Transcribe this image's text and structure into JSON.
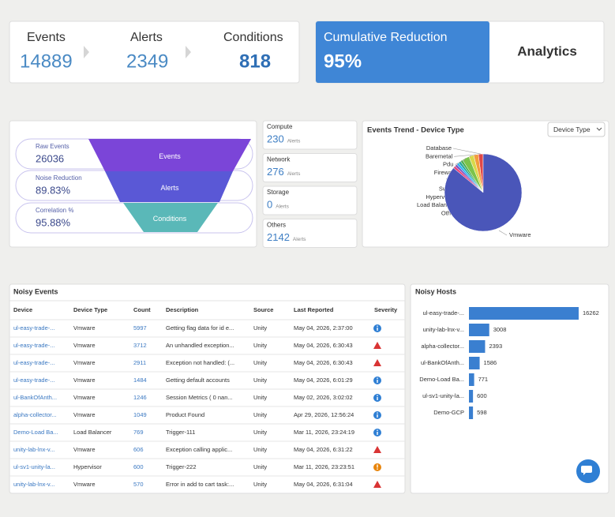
{
  "summary": {
    "items": [
      {
        "label": "Events",
        "value": "14889"
      },
      {
        "label": "Alerts",
        "value": "2349"
      },
      {
        "label": "Conditions",
        "value": "818"
      }
    ]
  },
  "reduction": {
    "label": "Cumulative Reduction",
    "value": "95%"
  },
  "analytics": "Analytics",
  "funnel": {
    "metrics": [
      {
        "label": "Raw Events",
        "value": "26036"
      },
      {
        "label": "Noise Reduction",
        "value": "89.83%"
      },
      {
        "label": "Correlation %",
        "value": "95.88%"
      }
    ],
    "stages": [
      "Events",
      "Alerts",
      "Conditions"
    ]
  },
  "stat_cards": [
    {
      "label": "Compute",
      "value": "230",
      "unit": "Alerts"
    },
    {
      "label": "Network",
      "value": "276",
      "unit": "Alerts"
    },
    {
      "label": "Storage",
      "value": "0",
      "unit": "Alerts"
    },
    {
      "label": "Others",
      "value": "2142",
      "unit": "Alerts"
    }
  ],
  "device_trend": {
    "type": "pie",
    "title": "Events Trend - Device Type",
    "select": "Device Type",
    "categories": [
      "Database",
      "Baremetal",
      "Pdu",
      "Firewall",
      "Vm",
      "Switch",
      "Hypervisor",
      "Load Balancer",
      "Other",
      "Vmware"
    ],
    "values": [
      2,
      2,
      2,
      3,
      1,
      1,
      1,
      1,
      1,
      86
    ],
    "colors": [
      "#e04848",
      "#f39c3c",
      "#d8d84a",
      "#7cc34a",
      "#4caf50",
      "#26a69a",
      "#29b6f6",
      "#7e57c2",
      "#ec407a",
      "#4a56b9"
    ]
  },
  "noisy_events": {
    "title": "Noisy Events",
    "columns": [
      "Device",
      "Device Type",
      "Count",
      "Description",
      "Source",
      "Last Reported",
      "Severity"
    ],
    "rows": [
      [
        "ul-easy-trade-...",
        "Vmware",
        5997,
        "Getting flag data for id e...",
        "Unity",
        "May 04, 2026, 2:37:00"
      ],
      [
        "ul-easy-trade-...",
        "Vmware",
        3712,
        "An unhandled exception...",
        "Unity",
        "May 04, 2026, 6:30:43"
      ],
      [
        "ul-easy-trade-...",
        "Vmware",
        2911,
        "Exception not handled: (...",
        "Unity",
        "May 04, 2026, 6:30:43"
      ],
      [
        "ul-easy-trade-...",
        "Vmware",
        1484,
        "Getting default accounts",
        "Unity",
        "May 04, 2026, 6:01:29"
      ],
      [
        "ul-BankOfAnth...",
        "Vmware",
        1246,
        "Session Metrics ( 0 nan...",
        "Unity",
        "May 02, 2026, 3:02:02"
      ],
      [
        "alpha-collector...",
        "Vmware",
        1049,
        "Product Found",
        "Unity",
        "Apr 29, 2026, 12:56:24"
      ],
      [
        "Demo-Load Ba...",
        "Load Balancer",
        769,
        "Trigger-111",
        "Unity",
        "Mar 11, 2026, 23:24:19"
      ],
      [
        "unity-lab-lnx-v...",
        "Vmware",
        606,
        "Exception calling applic...",
        "Unity",
        "May 04, 2026, 6:31:22"
      ],
      [
        "ul-sv1-unity-la...",
        "Hypervisor",
        600,
        "Trigger-222",
        "Unity",
        "Mar 11, 2026, 23:23:51"
      ],
      [
        "unity-lab-lnx-v...",
        "Vmware",
        570,
        "Error in add to cart task:...",
        "Unity",
        "May 04, 2026, 6:31:04"
      ]
    ],
    "severity": [
      "info",
      "error",
      "error",
      "info",
      "info",
      "info",
      "info",
      "error",
      "warning",
      "error"
    ]
  },
  "noisy_hosts": {
    "type": "bar",
    "title": "Noisy Hosts",
    "categories": [
      "ul-easy-trade-...",
      "unity-lab-lnx-v...",
      "alpha-collector...",
      "ul-BankOfAnth...",
      "Demo-Load Ba...",
      "ul-sv1-unity-la...",
      "Demo-GCP"
    ],
    "values": [
      16262,
      3008,
      2393,
      1586,
      771,
      600,
      598
    ],
    "color": "#3a7fd0",
    "xlim": [
      0,
      16500
    ]
  }
}
